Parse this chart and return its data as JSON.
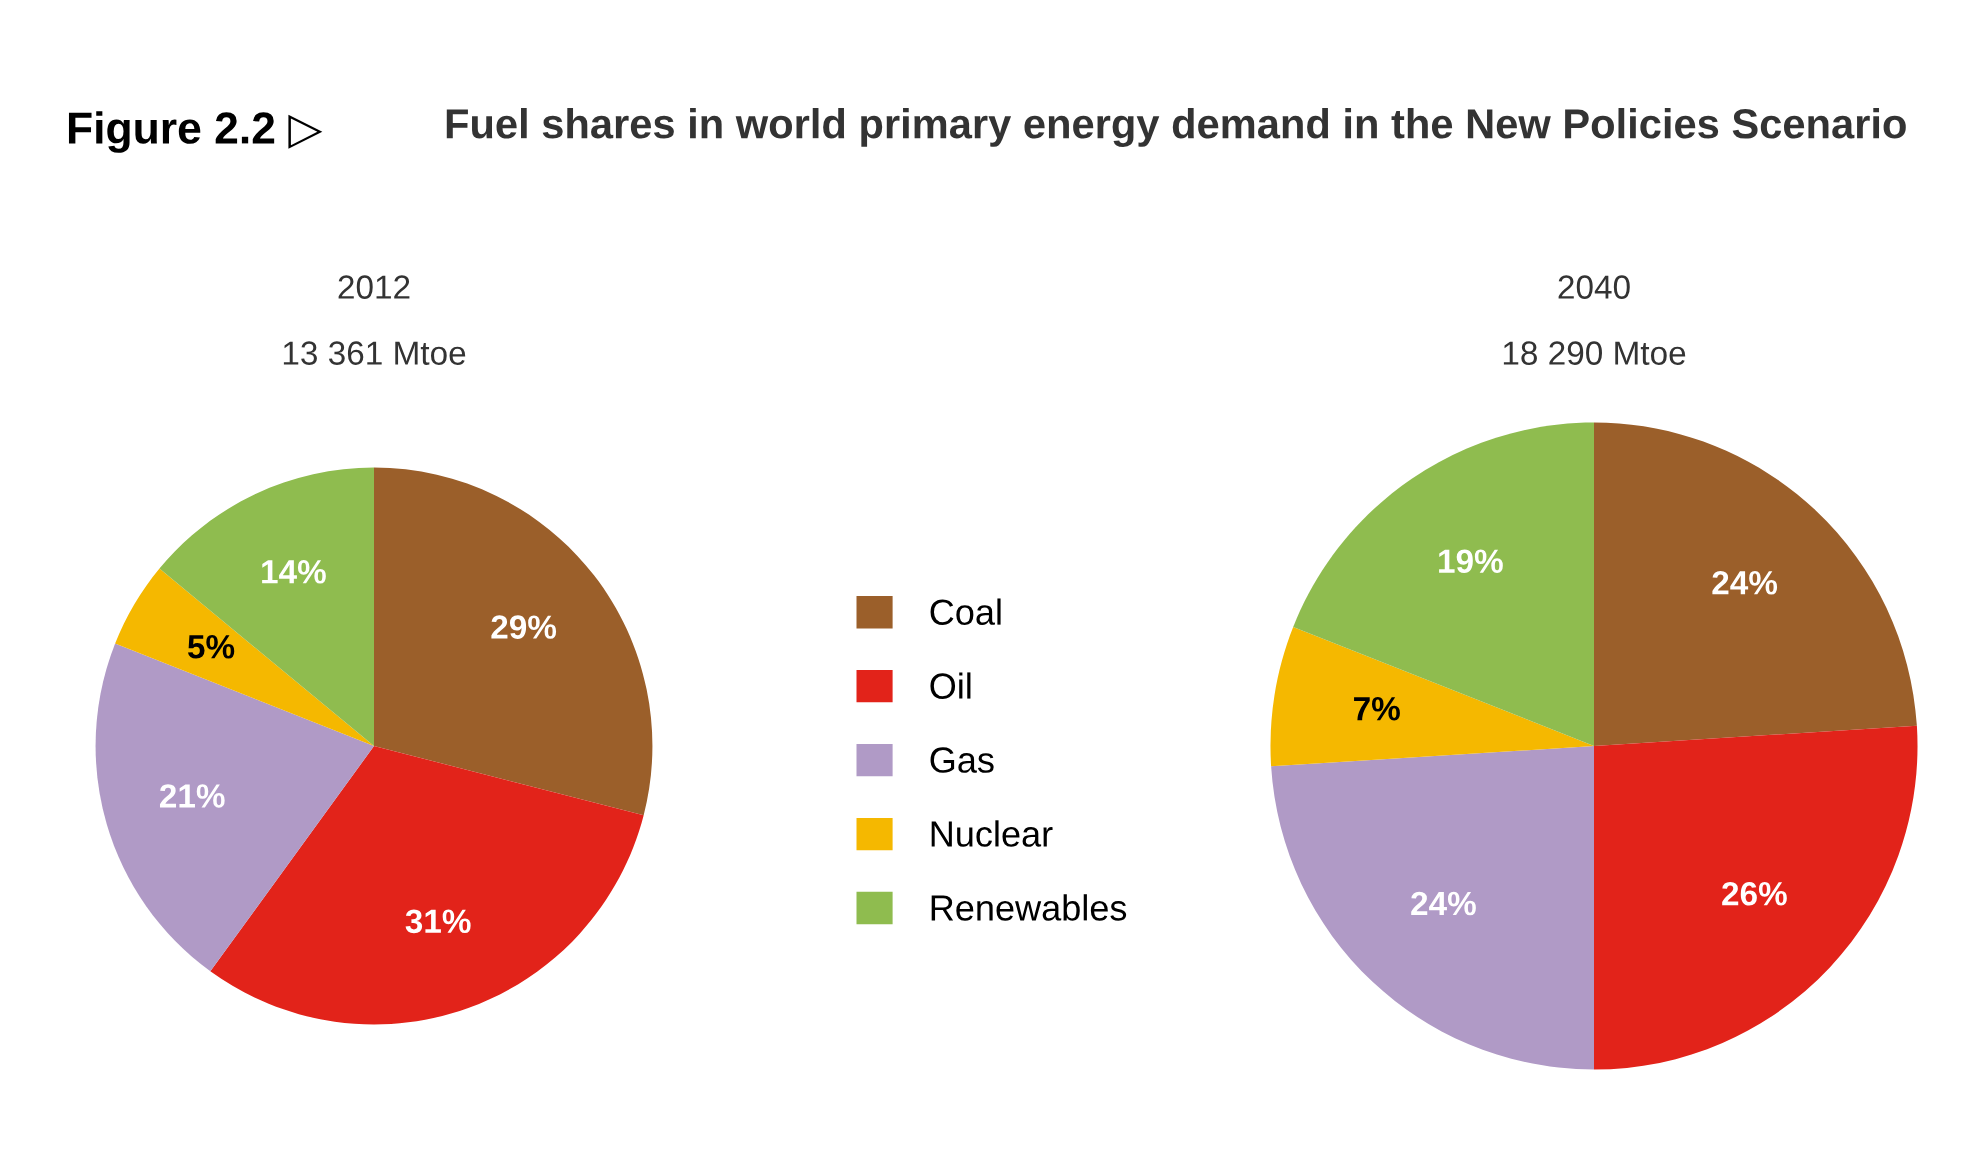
{
  "chart_data": [
    {
      "type": "pie",
      "title": "2012",
      "subtitle": "13 361 Mtoe",
      "annotations": [
        "Figure 2.2 ▷",
        "Fuel shares in world primary energy demand in the New Policies Scenario"
      ],
      "categories": [
        "Coal",
        "Oil",
        "Gas",
        "Nuclear",
        "Renewables"
      ],
      "values": [
        29,
        31,
        21,
        5,
        14
      ],
      "value_labels": [
        "29%",
        "31%",
        "21%",
        "5%",
        "14%"
      ],
      "colors": [
        "#9b5f2a",
        "#e2231a",
        "#b09ac6",
        "#f5b800",
        "#8fbc4f"
      ],
      "legend": "right"
    },
    {
      "type": "pie",
      "title": "2040",
      "subtitle": "18 290 Mtoe",
      "categories": [
        null,
        null,
        null,
        null,
        null
      ],
      "values": [
        24,
        26,
        24,
        7,
        19
      ],
      "value_labels": [
        "24%",
        "26%",
        "24%",
        "7%",
        "19%"
      ],
      "colors": [
        "#9b5f2a",
        "#e2231a",
        "#b09ac6",
        "#f5b800",
        "#8fbc4f"
      ]
    }
  ]
}
